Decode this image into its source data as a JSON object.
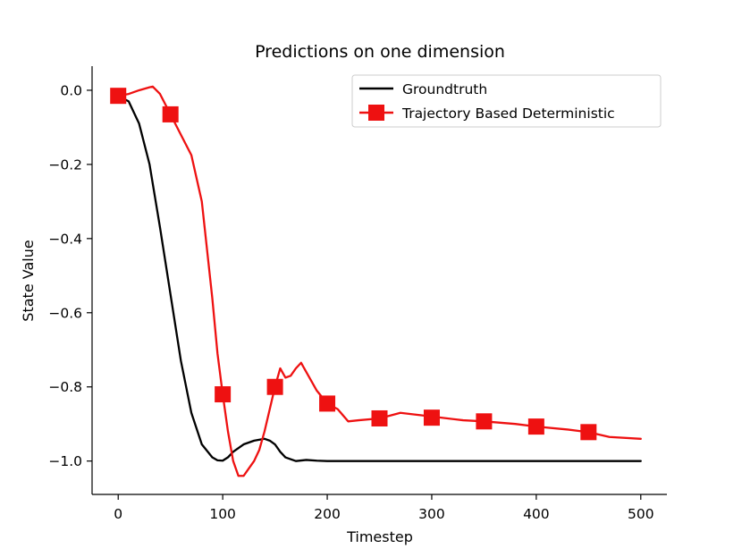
{
  "chart_data": {
    "type": "line",
    "title": "Predictions on one dimension",
    "xlabel": "Timestep",
    "ylabel": "State Value",
    "xlim": [
      -25,
      525
    ],
    "ylim": [
      -1.09,
      0.065
    ],
    "xticks": [
      0,
      100,
      200,
      300,
      400,
      500
    ],
    "xtick_labels": [
      "0",
      "100",
      "200",
      "300",
      "400",
      "500"
    ],
    "yticks": [
      0.0,
      -0.2,
      -0.4,
      -0.6,
      -0.8,
      -1.0
    ],
    "ytick_labels": [
      "0.0",
      "−0.2",
      "−0.4",
      "−0.6",
      "−0.8",
      "−1.0"
    ],
    "grid": false,
    "legend_position": "top-right",
    "series": [
      {
        "name": "Groundtruth",
        "color": "#000000",
        "marker": "none",
        "x": [
          0,
          10,
          20,
          30,
          40,
          50,
          60,
          70,
          80,
          90,
          95,
          100,
          105,
          110,
          120,
          130,
          140,
          145,
          150,
          155,
          160,
          170,
          180,
          190,
          200,
          250,
          300,
          350,
          400,
          450,
          500
        ],
        "y": [
          -0.015,
          -0.03,
          -0.09,
          -0.2,
          -0.37,
          -0.55,
          -0.73,
          -0.87,
          -0.955,
          -0.99,
          -0.998,
          -0.999,
          -0.99,
          -0.975,
          -0.955,
          -0.945,
          -0.94,
          -0.945,
          -0.955,
          -0.975,
          -0.99,
          -1.0,
          -0.997,
          -0.999,
          -1.0,
          -1.0,
          -1.0,
          -1.0,
          -1.0,
          -1.0,
          -1.0
        ]
      },
      {
        "name": "Trajectory Based Deterministic",
        "color": "#ee1111",
        "marker": "square",
        "x": [
          0,
          10,
          20,
          30,
          33,
          40,
          50,
          60,
          70,
          80,
          90,
          95,
          100,
          105,
          110,
          115,
          120,
          125,
          130,
          135,
          140,
          145,
          150,
          153,
          155,
          160,
          165,
          170,
          175,
          180,
          190,
          200,
          210,
          220,
          230,
          250,
          270,
          300,
          330,
          350,
          380,
          400,
          430,
          450,
          470,
          500
        ],
        "y": [
          -0.015,
          -0.01,
          0.0,
          0.008,
          0.01,
          -0.01,
          -0.065,
          -0.12,
          -0.175,
          -0.3,
          -0.56,
          -0.71,
          -0.82,
          -0.92,
          -1.0,
          -1.04,
          -1.04,
          -1.02,
          -1.0,
          -0.97,
          -0.92,
          -0.86,
          -0.8,
          -0.77,
          -0.75,
          -0.775,
          -0.77,
          -0.75,
          -0.735,
          -0.76,
          -0.81,
          -0.845,
          -0.86,
          -0.893,
          -0.89,
          -0.885,
          -0.87,
          -0.88,
          -0.89,
          -0.893,
          -0.9,
          -0.907,
          -0.915,
          -0.922,
          -0.935,
          -0.94
        ],
        "marker_x": [
          0,
          50,
          100,
          150,
          200,
          250,
          300,
          350,
          400,
          450
        ],
        "marker_y": [
          -0.015,
          -0.065,
          -0.82,
          -0.8,
          -0.845,
          -0.885,
          -0.883,
          -0.893,
          -0.907,
          -0.922
        ]
      }
    ]
  }
}
